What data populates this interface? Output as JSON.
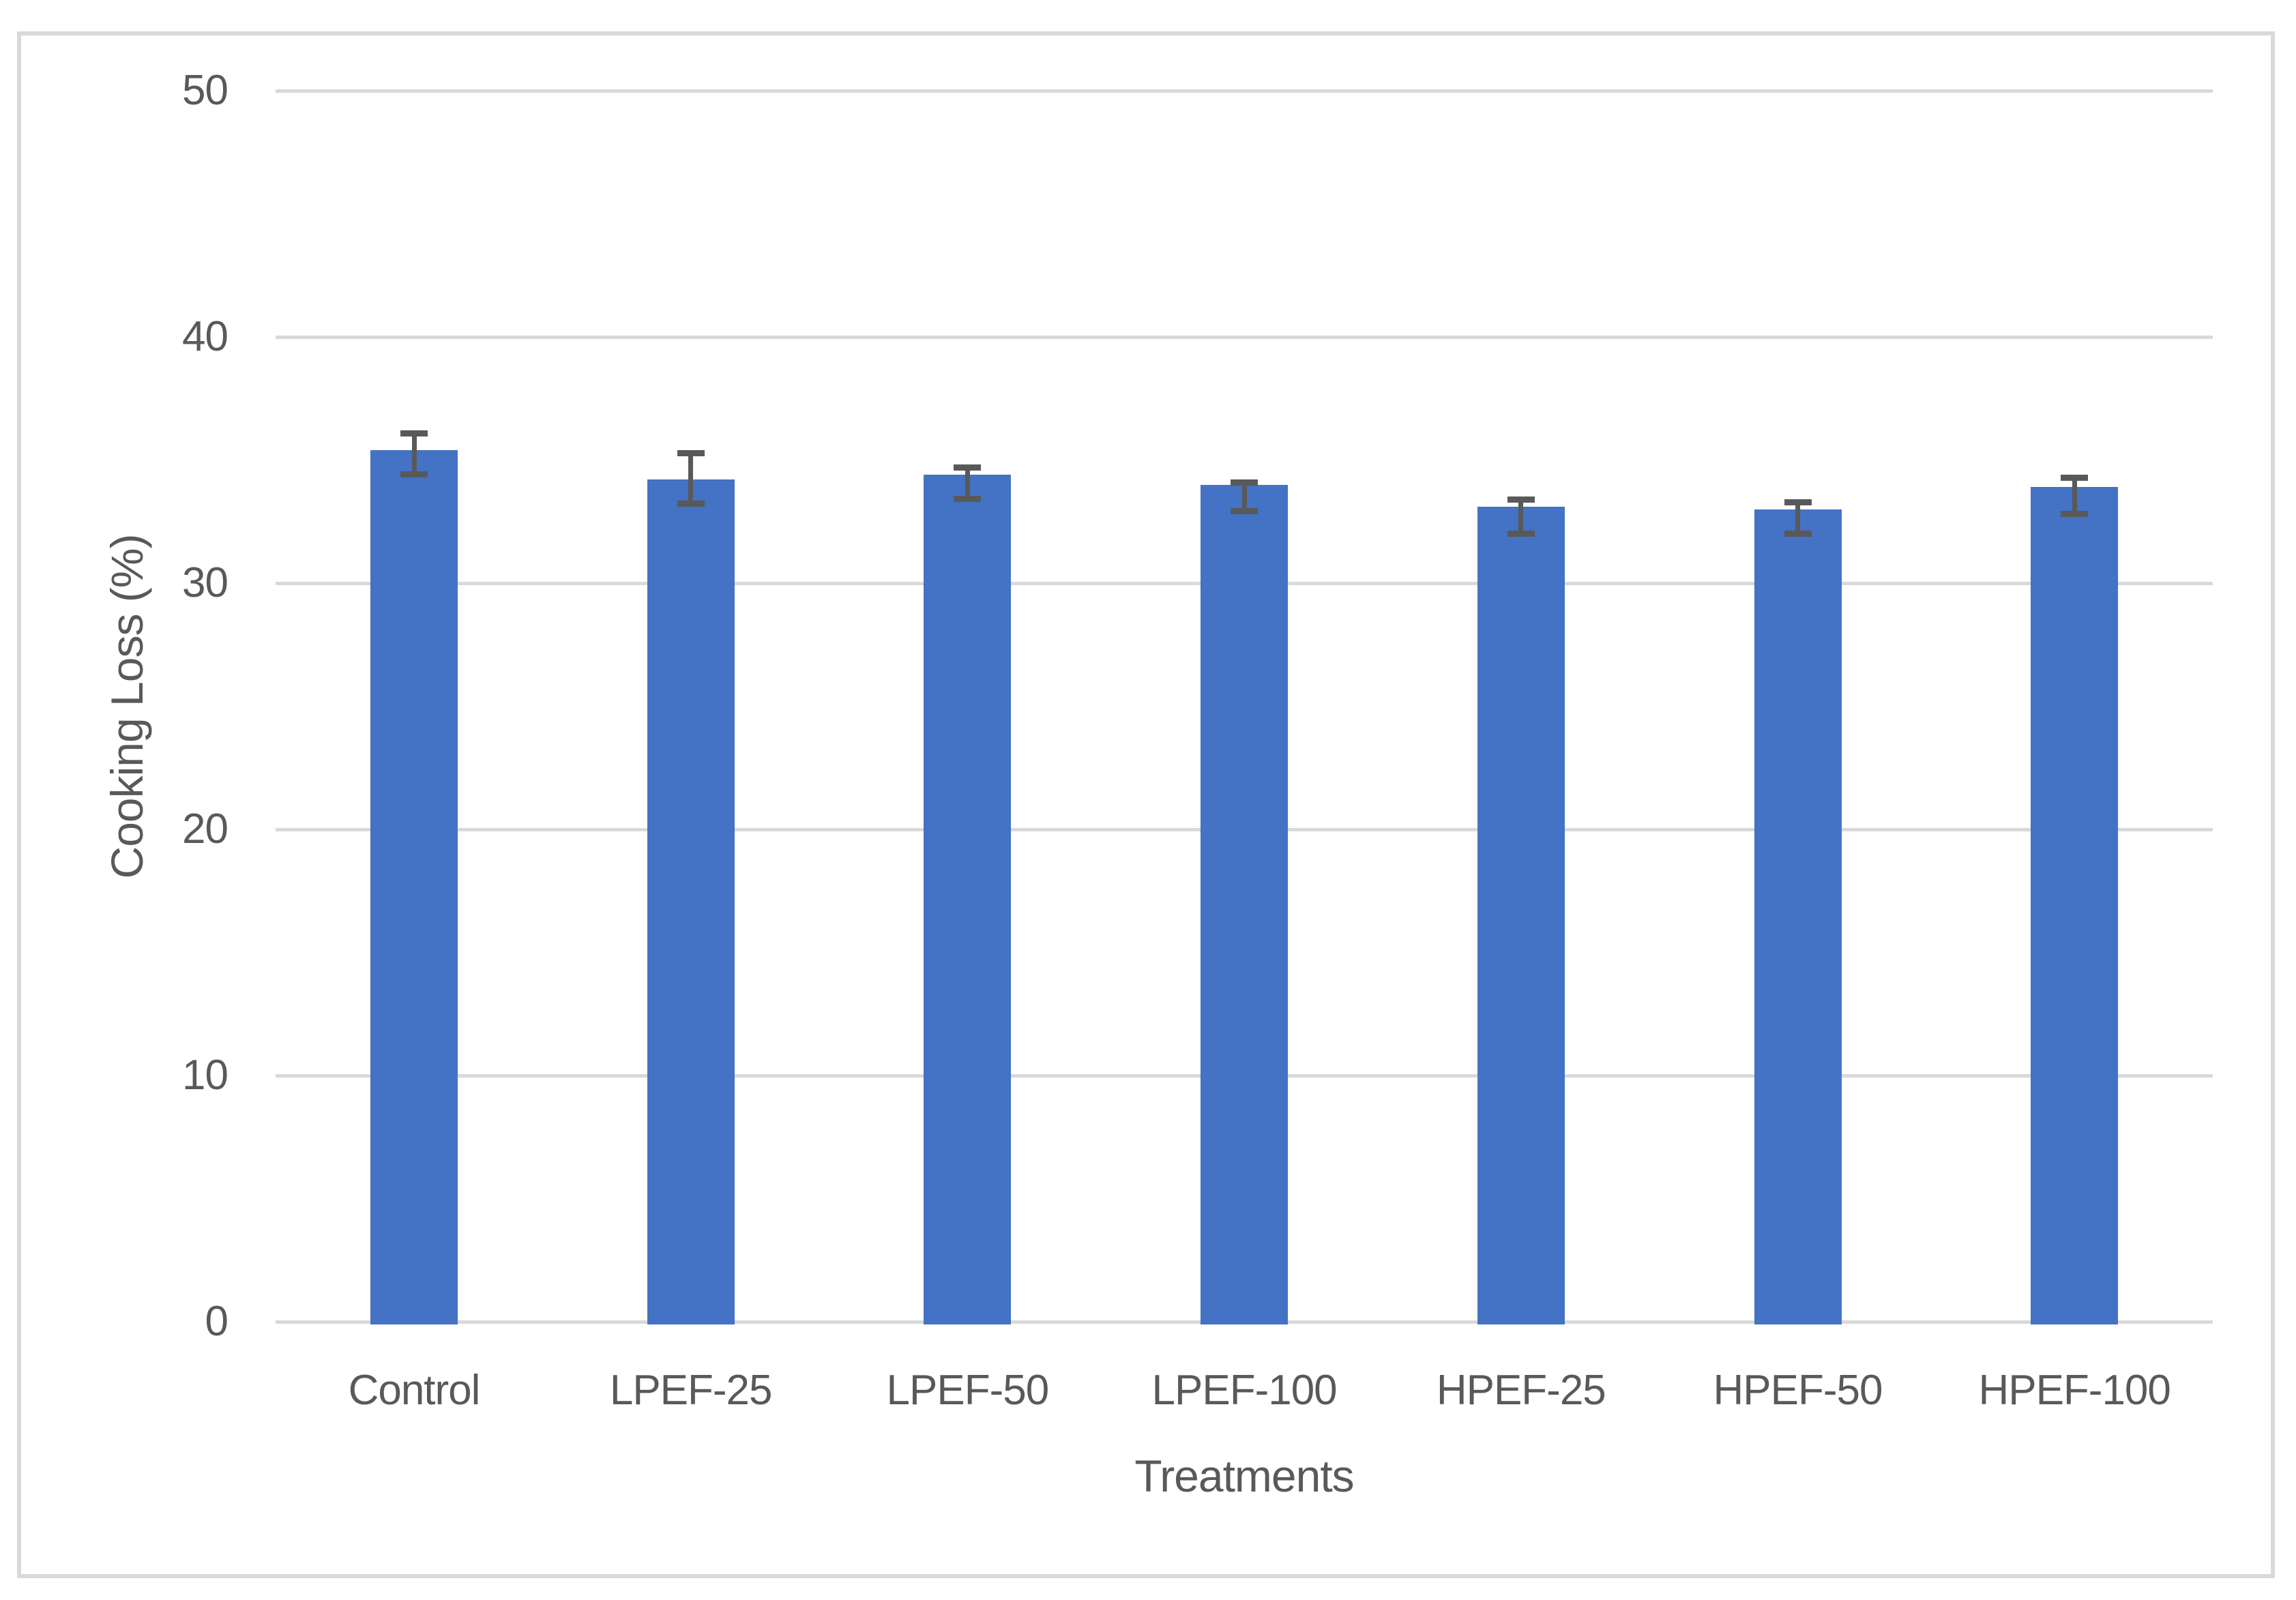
{
  "chart_data": {
    "type": "bar",
    "title": "",
    "categories": [
      "Control",
      "LPEF-25",
      "LPEF-50",
      "LPEF-100",
      "HPEF-25",
      "HPEF-50",
      "HPEF-100"
    ],
    "series": [
      {
        "name": "Cooking Loss",
        "values": [
          35.4,
          34.2,
          34.4,
          34.0,
          33.1,
          33.0,
          33.9
        ],
        "error_upper_cap": [
          36.1,
          35.3,
          34.7,
          34.1,
          33.4,
          33.3,
          34.3
        ],
        "error_lower_cap": [
          34.4,
          33.2,
          33.4,
          32.9,
          32.0,
          32.0,
          32.8
        ]
      }
    ],
    "xlabel": "Treatments",
    "ylabel": "Cooking Loss (%)",
    "ylim": [
      0,
      50
    ],
    "yticks": [
      0,
      10,
      20,
      30,
      40,
      50
    ],
    "grid": "horizontal-only",
    "legend_position": "none",
    "colors": {
      "bar_fill": "#4472c4",
      "error_bar": "#595959",
      "gridline": "#d9d9d9",
      "axis_line": "#d9d9d9",
      "text": "#595959",
      "chart_border": "#d9d9d9",
      "background": "#ffffff"
    }
  }
}
